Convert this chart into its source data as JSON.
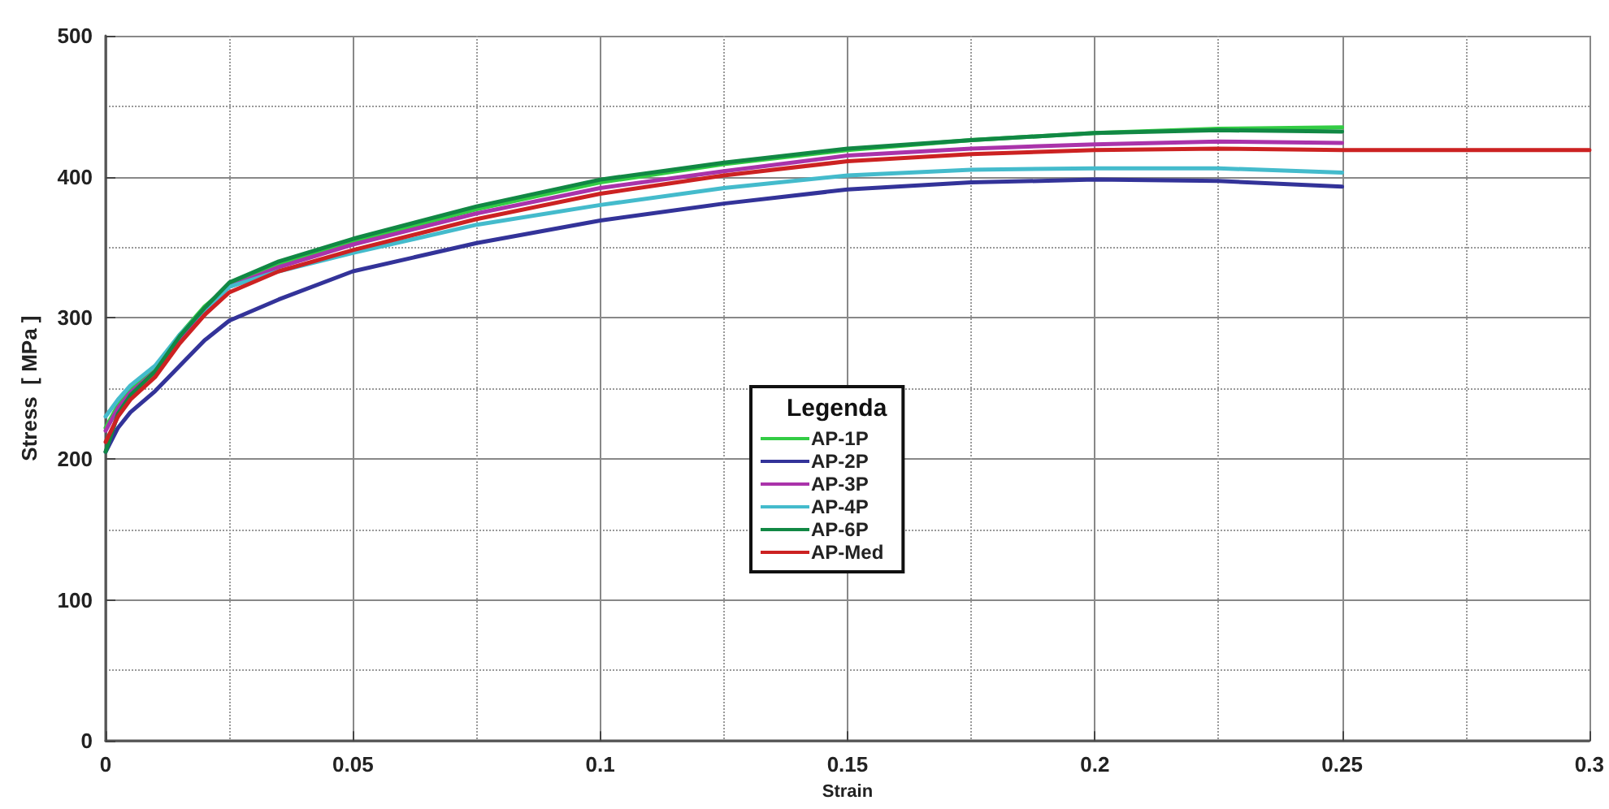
{
  "chart_data": {
    "type": "line",
    "xlabel": "Strain",
    "ylabel": "Stress  [ MPa ]",
    "legend_title": "Legenda",
    "x": [
      0,
      0.0025,
      0.005,
      0.01,
      0.015,
      0.02,
      0.025,
      0.035,
      0.05,
      0.075,
      0.1,
      0.125,
      0.15,
      0.175,
      0.2,
      0.225,
      0.25
    ],
    "series": [
      {
        "name": "AP-1P",
        "color": "#33cc44",
        "values": [
          222,
          238,
          250,
          265,
          288,
          308,
          323,
          338,
          354,
          377,
          396,
          409,
          419,
          426,
          431,
          434,
          435
        ]
      },
      {
        "name": "AP-2P",
        "color": "#333399",
        "values": [
          205,
          222,
          233,
          248,
          266,
          284,
          298,
          313,
          333,
          353,
          369,
          381,
          391,
          396,
          398,
          397,
          393
        ]
      },
      {
        "name": "AP-3P",
        "color": "#aa33aa",
        "values": [
          220,
          236,
          247,
          262,
          285,
          305,
          322,
          336,
          352,
          374,
          392,
          404,
          415,
          420,
          423,
          425,
          424
        ]
      },
      {
        "name": "AP-4P",
        "color": "#44bbcc",
        "values": [
          230,
          242,
          252,
          266,
          288,
          306,
          322,
          333,
          346,
          366,
          380,
          392,
          401,
          405,
          406,
          406,
          403
        ]
      },
      {
        "name": "AP-6P",
        "color": "#118844",
        "values": [
          205,
          232,
          245,
          262,
          287,
          307,
          325,
          340,
          356,
          379,
          398,
          410,
          420,
          426,
          431,
          433,
          432
        ]
      },
      {
        "name": "AP-Med",
        "color": "#cc2222",
        "x": [
          0,
          0.0025,
          0.005,
          0.01,
          0.015,
          0.02,
          0.025,
          0.035,
          0.05,
          0.075,
          0.1,
          0.125,
          0.15,
          0.175,
          0.2,
          0.225,
          0.25,
          0.3
        ],
        "values": [
          212,
          230,
          242,
          258,
          282,
          302,
          318,
          333,
          348,
          370,
          388,
          401,
          411,
          416,
          419,
          420,
          419,
          419
        ]
      }
    ],
    "xlim": [
      0,
      0.3
    ],
    "xticks": [
      0,
      0.05,
      0.1,
      0.15,
      0.2,
      0.25,
      0.3
    ],
    "ylim": [
      0,
      500
    ],
    "yticks": [
      0,
      100,
      200,
      300,
      400,
      500
    ],
    "grid": true,
    "legend": "center",
    "marker": "none",
    "line_style": "solid"
  }
}
